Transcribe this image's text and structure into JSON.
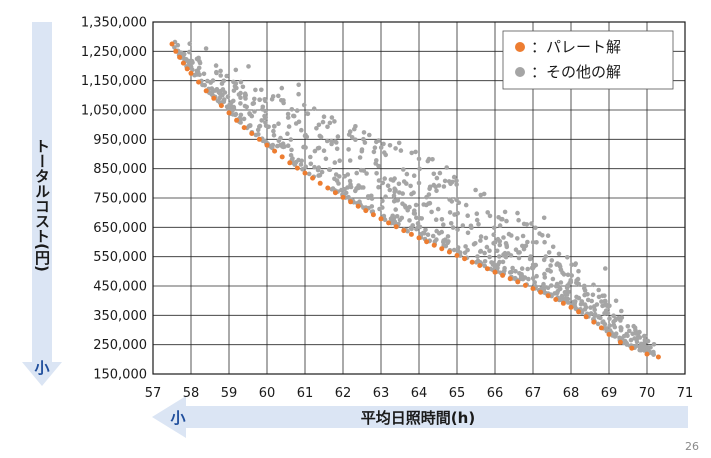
{
  "page_number": "26",
  "chart_data": {
    "type": "scatter",
    "title": "",
    "xlabel": "平均日照時間(h)",
    "ylabel": "トータルコスト(円)",
    "x_arrow_label": "小",
    "y_arrow_label": "小",
    "xlim": [
      57,
      71
    ],
    "ylim": [
      150000,
      1350000
    ],
    "x_ticks": [
      "57",
      "58",
      "59",
      "60",
      "61",
      "62",
      "63",
      "64",
      "65",
      "66",
      "67",
      "68",
      "69",
      "70",
      "71"
    ],
    "y_ticks": [
      "150,000",
      "250,000",
      "350,000",
      "450,000",
      "550,000",
      "650,000",
      "750,000",
      "850,000",
      "950,000",
      "1,050,000",
      "1,150,000",
      "1,250,000",
      "1,350,000"
    ],
    "grid": true,
    "legend_position": "top-right",
    "colors": {
      "pareto": "#ed7d31",
      "other": "#a5a5a5",
      "arrow": "#dbe5f4"
    },
    "series": [
      {
        "name": "：パレート解",
        "color": "#ed7d31",
        "points": [
          [
            57.5,
            1275000
          ],
          [
            57.6,
            1250000
          ],
          [
            57.7,
            1230000
          ],
          [
            57.8,
            1210000
          ],
          [
            57.9,
            1190000
          ],
          [
            58.0,
            1175000
          ],
          [
            58.2,
            1145000
          ],
          [
            58.4,
            1115000
          ],
          [
            58.6,
            1090000
          ],
          [
            58.8,
            1065000
          ],
          [
            59.0,
            1040000
          ],
          [
            59.2,
            1015000
          ],
          [
            59.4,
            990000
          ],
          [
            59.6,
            970000
          ],
          [
            59.8,
            950000
          ],
          [
            60.0,
            930000
          ],
          [
            60.2,
            910000
          ],
          [
            60.4,
            890000
          ],
          [
            60.6,
            870000
          ],
          [
            60.8,
            852000
          ],
          [
            61.0,
            835000
          ],
          [
            61.2,
            818000
          ],
          [
            61.4,
            800000
          ],
          [
            61.6,
            784000
          ],
          [
            61.8,
            768000
          ],
          [
            62.0,
            752000
          ],
          [
            62.2,
            737000
          ],
          [
            62.4,
            722000
          ],
          [
            62.6,
            707000
          ],
          [
            62.8,
            693000
          ],
          [
            63.0,
            679000
          ],
          [
            63.2,
            665000
          ],
          [
            63.4,
            652000
          ],
          [
            63.6,
            639000
          ],
          [
            63.8,
            626000
          ],
          [
            64.0,
            614000
          ],
          [
            64.2,
            601000
          ],
          [
            64.4,
            589000
          ],
          [
            64.6,
            577000
          ],
          [
            64.8,
            566000
          ],
          [
            65.0,
            554000
          ],
          [
            65.2,
            543000
          ],
          [
            65.4,
            531000
          ],
          [
            65.6,
            520000
          ],
          [
            65.8,
            509000
          ],
          [
            66.0,
            497000
          ],
          [
            66.2,
            486000
          ],
          [
            66.4,
            475000
          ],
          [
            66.6,
            464000
          ],
          [
            66.8,
            452000
          ],
          [
            67.0,
            441000
          ],
          [
            67.2,
            429000
          ],
          [
            67.4,
            417000
          ],
          [
            67.6,
            404000
          ],
          [
            67.8,
            391000
          ],
          [
            68.0,
            377000
          ],
          [
            68.2,
            362000
          ],
          [
            68.4,
            345000
          ],
          [
            68.6,
            327000
          ],
          [
            68.8,
            307000
          ],
          [
            69.0,
            285000
          ],
          [
            69.3,
            258000
          ],
          [
            69.6,
            238000
          ],
          [
            70.0,
            218000
          ],
          [
            70.3,
            208000
          ]
        ]
      },
      {
        "name": "：その他の解",
        "color": "#a5a5a5",
        "generated_count": 900
      }
    ]
  }
}
